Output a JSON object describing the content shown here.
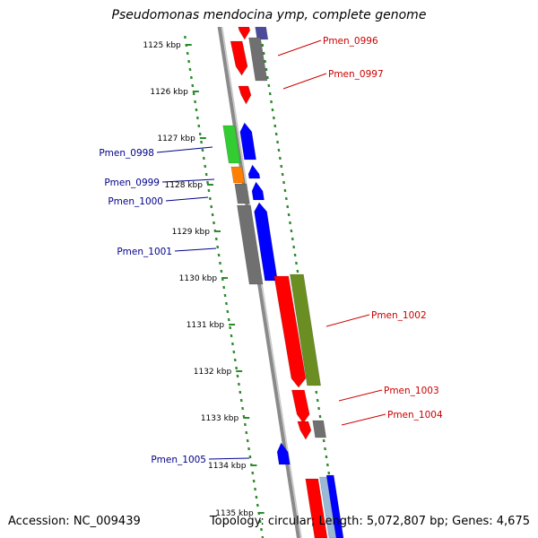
{
  "title": "Pseudomonas mendocina ymp, complete genome",
  "accession": "Accession: NC_009439",
  "summary": "Topology: circular; Length: 5,072,807 bp; Genes: 4,675",
  "colors": {
    "backbone": "#8a8a8a",
    "tick": "#2e8b2e",
    "right_label": "#cc0000",
    "left_label": "#00008b",
    "red": "#ff0000",
    "grey": "#707070",
    "blue": "#0000ff",
    "green": "#33cc33",
    "orange": "#ff8000",
    "olive": "#6b8e23",
    "purple": "#4b4b9a",
    "lightblue": "#9ab8d8"
  },
  "scale_labels": [
    "1125 kbp",
    "1126 kbp",
    "1127 kbp",
    "1128 kbp",
    "1129 kbp",
    "1130 kbp",
    "1131 kbp",
    "1132 kbp",
    "1133 kbp",
    "1134 kbp",
    "1135 kbp"
  ],
  "gene_labels": [
    {
      "name": "Pmen_0996",
      "side": "right"
    },
    {
      "name": "Pmen_0997",
      "side": "right"
    },
    {
      "name": "Pmen_0998",
      "side": "left"
    },
    {
      "name": "Pmen_0999",
      "side": "left"
    },
    {
      "name": "Pmen_1000",
      "side": "left"
    },
    {
      "name": "Pmen_1001",
      "side": "left"
    },
    {
      "name": "Pmen_1002",
      "side": "right"
    },
    {
      "name": "Pmen_1003",
      "side": "right"
    },
    {
      "name": "Pmen_1004",
      "side": "right"
    },
    {
      "name": "Pmen_1005",
      "side": "left"
    }
  ]
}
